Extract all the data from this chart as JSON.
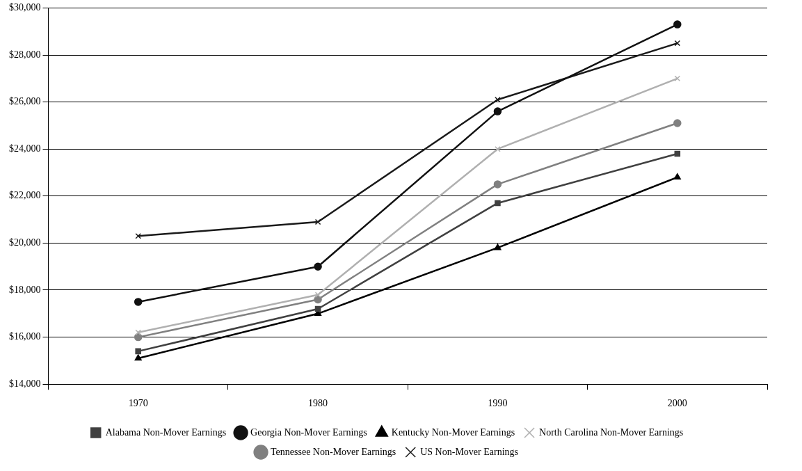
{
  "chart_data": {
    "type": "line",
    "categories": [
      "1970",
      "1980",
      "1990",
      "2000"
    ],
    "series": [
      {
        "name": "Alabama Non-Mover Earnings",
        "color": "#404040",
        "marker": "square",
        "values": [
          15400,
          17200,
          21700,
          23800
        ]
      },
      {
        "name": "Georgia Non-Mover Earnings",
        "color": "#111111",
        "marker": "circle",
        "values": [
          17500,
          19000,
          25600,
          29300
        ]
      },
      {
        "name": "Kentucky Non-Mover Earnings",
        "color": "#000000",
        "marker": "triangle",
        "values": [
          15100,
          17000,
          19800,
          22800
        ]
      },
      {
        "name": "North Carolina Non-Mover Earnings",
        "color": "#b0b0b0",
        "marker": "cross",
        "values": [
          16200,
          17800,
          24000,
          27000
        ]
      },
      {
        "name": "Tennessee Non-Mover Earnings",
        "color": "#808080",
        "marker": "circle",
        "values": [
          16000,
          17600,
          22500,
          25100
        ]
      },
      {
        "name": "US Non-Mover Earnings",
        "color": "#1a1a1a",
        "marker": "cross",
        "values": [
          20300,
          20900,
          26100,
          28500
        ]
      }
    ],
    "ylim": [
      14000,
      30000
    ],
    "yticks": [
      {
        "value": 14000,
        "label": "$14,000"
      },
      {
        "value": 16000,
        "label": "$16,000"
      },
      {
        "value": 18000,
        "label": "$18,000"
      },
      {
        "value": 20000,
        "label": "$20,000"
      },
      {
        "value": 22000,
        "label": "$22,000"
      },
      {
        "value": 24000,
        "label": "$24,000"
      },
      {
        "value": 26000,
        "label": "$26,000"
      },
      {
        "value": 28000,
        "label": "$28,000"
      },
      {
        "value": 30000,
        "label": "$30,000"
      }
    ],
    "grid": "y",
    "legend": "bottom",
    "line_style": "solid"
  }
}
